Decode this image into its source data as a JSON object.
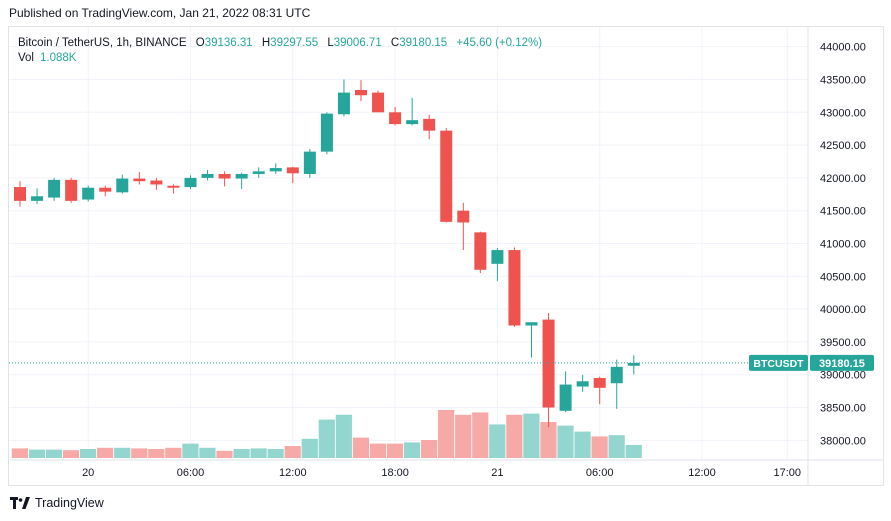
{
  "header": {
    "published": "Published on TradingView.com, Jan 21, 2022 08:31 UTC"
  },
  "legend": {
    "symbol": "Bitcoin / TetherUS, 1h, BINANCE",
    "o_label": "O",
    "o": "39136.31",
    "h_label": "H",
    "h": "39297.55",
    "l_label": "L",
    "l": "39006.71",
    "c_label": "C",
    "c": "39180.15",
    "change": "+45.60 (+0.12%)",
    "vol_label": "Vol",
    "vol": "1.088K"
  },
  "price_tag": {
    "symbol": "BTCUSDT",
    "price": "39180.15"
  },
  "footer": {
    "brand": "TradingView"
  },
  "colors": {
    "up": "#26a69a",
    "down": "#ef5350",
    "up_vol": "#93d5cf",
    "down_vol": "#f7a9a7",
    "grid": "#f0f3fa"
  },
  "chart_data": {
    "type": "candlestick",
    "ylim": [
      37700,
      44300
    ],
    "y_ticks": [
      "44000.00",
      "43500.00",
      "43000.00",
      "42500.00",
      "42000.00",
      "41500.00",
      "41000.00",
      "40500.00",
      "40000.00",
      "39500.00",
      "39000.00",
      "38500.00",
      "38000.00"
    ],
    "y_tick_values": [
      44000,
      43500,
      43000,
      42500,
      42000,
      41500,
      41000,
      40500,
      40000,
      39500,
      39000,
      38500,
      38000
    ],
    "x_ticks": [
      {
        "label": "20",
        "bar": 4
      },
      {
        "label": "06:00",
        "bar": 10
      },
      {
        "label": "12:00",
        "bar": 16
      },
      {
        "label": "18:00",
        "bar": 22
      },
      {
        "label": "21",
        "bar": 28
      },
      {
        "label": "06:00",
        "bar": 34
      },
      {
        "label": "12:00",
        "bar": 40
      },
      {
        "label": "17:00",
        "bar": 45
      }
    ],
    "last_price": 39180.15,
    "candles": [
      {
        "o": 41860,
        "h": 41950,
        "l": 41560,
        "c": 41650,
        "v": 0.8
      },
      {
        "o": 41650,
        "h": 41840,
        "l": 41600,
        "c": 41720,
        "v": 0.7
      },
      {
        "o": 41700,
        "h": 42000,
        "l": 41650,
        "c": 41970,
        "v": 0.7
      },
      {
        "o": 41970,
        "h": 42000,
        "l": 41620,
        "c": 41650,
        "v": 0.65
      },
      {
        "o": 41670,
        "h": 41880,
        "l": 41640,
        "c": 41850,
        "v": 0.75
      },
      {
        "o": 41850,
        "h": 41880,
        "l": 41720,
        "c": 41790,
        "v": 0.85
      },
      {
        "o": 41780,
        "h": 42050,
        "l": 41760,
        "c": 41990,
        "v": 0.85
      },
      {
        "o": 41990,
        "h": 42090,
        "l": 41900,
        "c": 41950,
        "v": 0.8
      },
      {
        "o": 41960,
        "h": 42000,
        "l": 41820,
        "c": 41900,
        "v": 0.75
      },
      {
        "o": 41880,
        "h": 41900,
        "l": 41760,
        "c": 41850,
        "v": 0.85
      },
      {
        "o": 41860,
        "h": 42040,
        "l": 41830,
        "c": 42000,
        "v": 1.2
      },
      {
        "o": 42000,
        "h": 42120,
        "l": 41960,
        "c": 42060,
        "v": 0.85
      },
      {
        "o": 42060,
        "h": 42100,
        "l": 41870,
        "c": 41990,
        "v": 0.6
      },
      {
        "o": 41990,
        "h": 42080,
        "l": 41830,
        "c": 42060,
        "v": 0.75
      },
      {
        "o": 42060,
        "h": 42160,
        "l": 42000,
        "c": 42100,
        "v": 0.8
      },
      {
        "o": 42100,
        "h": 42220,
        "l": 42060,
        "c": 42150,
        "v": 0.75
      },
      {
        "o": 42160,
        "h": 42170,
        "l": 41920,
        "c": 42070,
        "v": 1.0
      },
      {
        "o": 42060,
        "h": 42440,
        "l": 42000,
        "c": 42400,
        "v": 1.6
      },
      {
        "o": 42400,
        "h": 43000,
        "l": 42360,
        "c": 42980,
        "v": 3.2
      },
      {
        "o": 42970,
        "h": 43500,
        "l": 42940,
        "c": 43300,
        "v": 3.6
      },
      {
        "o": 43340,
        "h": 43490,
        "l": 43170,
        "c": 43260,
        "v": 1.7
      },
      {
        "o": 43300,
        "h": 43330,
        "l": 43000,
        "c": 43000,
        "v": 1.2
      },
      {
        "o": 43000,
        "h": 43080,
        "l": 42800,
        "c": 42820,
        "v": 1.2
      },
      {
        "o": 42820,
        "h": 43220,
        "l": 42800,
        "c": 42880,
        "v": 1.3
      },
      {
        "o": 42900,
        "h": 42960,
        "l": 42590,
        "c": 42720,
        "v": 1.5
      },
      {
        "o": 42720,
        "h": 42760,
        "l": 41320,
        "c": 41330,
        "v": 4.0
      },
      {
        "o": 41500,
        "h": 41620,
        "l": 40900,
        "c": 41320,
        "v": 3.6
      },
      {
        "o": 41170,
        "h": 41180,
        "l": 40550,
        "c": 40600,
        "v": 3.8
      },
      {
        "o": 40690,
        "h": 40930,
        "l": 40430,
        "c": 40900,
        "v": 2.8
      },
      {
        "o": 40900,
        "h": 40940,
        "l": 39730,
        "c": 39750,
        "v": 3.6
      },
      {
        "o": 39750,
        "h": 39800,
        "l": 39260,
        "c": 39800,
        "v": 3.7
      },
      {
        "o": 39840,
        "h": 39940,
        "l": 38200,
        "c": 38500,
        "v": 3.0
      },
      {
        "o": 38450,
        "h": 39050,
        "l": 38430,
        "c": 38850,
        "v": 2.7
      },
      {
        "o": 38820,
        "h": 39000,
        "l": 38740,
        "c": 38900,
        "v": 2.2
      },
      {
        "o": 38950,
        "h": 38970,
        "l": 38550,
        "c": 38800,
        "v": 1.8
      },
      {
        "o": 38870,
        "h": 39230,
        "l": 38480,
        "c": 39120,
        "v": 1.9
      },
      {
        "o": 39136,
        "h": 39297,
        "l": 39006,
        "c": 39180,
        "v": 1.088
      }
    ]
  }
}
